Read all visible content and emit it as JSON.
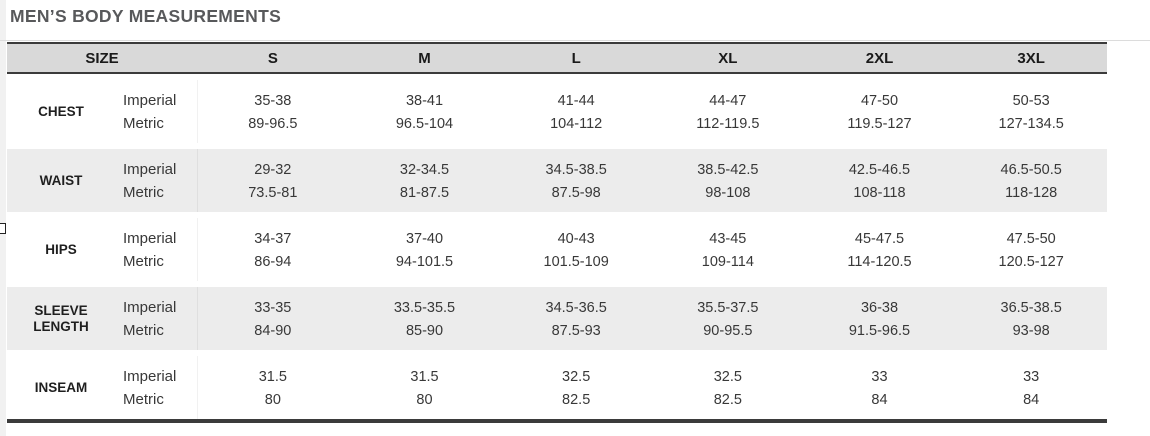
{
  "page": {
    "title": "MEN’S BODY MEASUREMENTS"
  },
  "table": {
    "size_header": "SIZE",
    "sizes": [
      "S",
      "M",
      "L",
      "XL",
      "2XL",
      "3XL"
    ],
    "unit_labels": {
      "imperial": "Imperial",
      "metric": "Metric"
    },
    "rows": [
      {
        "label": "CHEST",
        "imperial": [
          "35-38",
          "38-41",
          "41-44",
          "44-47",
          "47-50",
          "50-53"
        ],
        "metric": [
          "89-96.5",
          "96.5-104",
          "104-112",
          "112-119.5",
          "119.5-127",
          "127-134.5"
        ]
      },
      {
        "label": "WAIST",
        "imperial": [
          "29-32",
          "32-34.5",
          "34.5-38.5",
          "38.5-42.5",
          "42.5-46.5",
          "46.5-50.5"
        ],
        "metric": [
          "73.5-81",
          "81-87.5",
          "87.5-98",
          "98-108",
          "108-118",
          "118-128"
        ]
      },
      {
        "label": "HIPS",
        "imperial": [
          "34-37",
          "37-40",
          "40-43",
          "43-45",
          "45-47.5",
          "47.5-50"
        ],
        "metric": [
          "86-94",
          "94-101.5",
          "101.5-109",
          "109-114",
          "114-120.5",
          "120.5-127"
        ]
      },
      {
        "label": "SLEEVE LENGTH",
        "imperial": [
          "33-35",
          "33.5-35.5",
          "34.5-36.5",
          "35.5-37.5",
          "36-38",
          "36.5-38.5"
        ],
        "metric": [
          "84-90",
          "85-90",
          "87.5-93",
          "90-95.5",
          "91.5-96.5",
          "93-98"
        ]
      },
      {
        "label": "INSEAM",
        "imperial": [
          "31.5",
          "31.5",
          "32.5",
          "32.5",
          "33",
          "33"
        ],
        "metric": [
          "80",
          "80",
          "82.5",
          "82.5",
          "84",
          "84"
        ]
      }
    ]
  },
  "colors": {
    "title_text": "#58595b",
    "header_bg": "#d9d9d9",
    "alt_row_bg": "#ececec",
    "border_dark": "#3b3b3b",
    "body_text": "#383838"
  }
}
